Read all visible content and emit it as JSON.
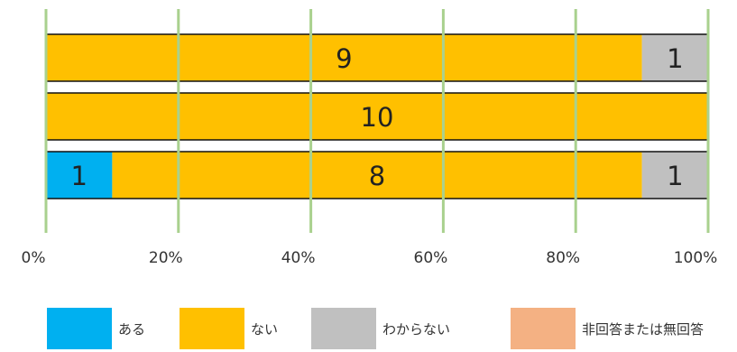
{
  "chart_data": {
    "type": "bar",
    "orientation": "horizontal",
    "stacked": true,
    "percent_stacked": true,
    "xlim": [
      0,
      100
    ],
    "x_ticks": [
      "0%",
      "20%",
      "40%",
      "60%",
      "80%",
      "100%"
    ],
    "grid": true,
    "legend_position": "bottom",
    "series": [
      {
        "name": "ある",
        "color": "#00b0f0",
        "values": [
          0,
          0,
          1
        ]
      },
      {
        "name": "ない",
        "color": "#ffc000",
        "values": [
          9,
          10,
          8
        ]
      },
      {
        "name": "わからない",
        "color": "#c0c0c0",
        "values": [
          1,
          0,
          1
        ]
      },
      {
        "name": "非回答または無回答",
        "color": "#f4b183",
        "values": [
          0,
          0,
          0
        ]
      }
    ]
  }
}
